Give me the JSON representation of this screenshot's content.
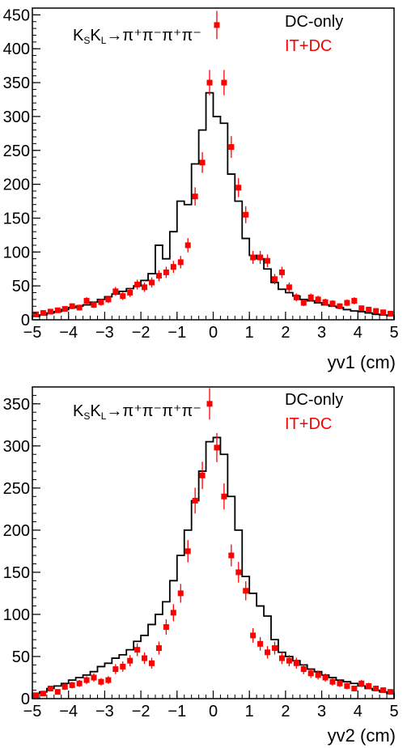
{
  "chart_data": [
    {
      "type": "line",
      "xlabel": "yv1 (cm)",
      "ylabel": "",
      "xlim": [
        -5,
        5
      ],
      "ylim": [
        0,
        460
      ],
      "x_ticks": [
        "−5",
        "−4",
        "−3",
        "−2",
        "−1",
        "0",
        "1",
        "2",
        "3",
        "4",
        "5"
      ],
      "y_ticks": [
        "0",
        "50",
        "100",
        "150",
        "200",
        "250",
        "300",
        "350",
        "400",
        "450"
      ],
      "annotation": {
        "k1": "K",
        "s1": "S",
        "k2": "K",
        "s2": "L",
        "rest": "→π⁺π⁻π⁺π⁻"
      },
      "legend": [
        "DC-only",
        "IT+DC"
      ],
      "colors": {
        "DC-only": "#000000",
        "IT+DC": "#ff0000"
      },
      "series": [
        {
          "name": "DC-only",
          "style": "histogram",
          "bin_edges": [
            -5,
            -4.8,
            -4.6,
            -4.4,
            -4.2,
            -4,
            -3.8,
            -3.6,
            -3.4,
            -3.2,
            -3,
            -2.8,
            -2.6,
            -2.4,
            -2.2,
            -2,
            -1.8,
            -1.6,
            -1.4,
            -1.2,
            -1,
            -0.8,
            -0.6,
            -0.4,
            -0.2,
            0,
            0.2,
            0.4,
            0.6,
            0.8,
            1,
            1.2,
            1.4,
            1.6,
            1.8,
            2,
            2.2,
            2.4,
            2.6,
            2.8,
            3,
            3.2,
            3.4,
            3.6,
            3.8,
            4,
            4.2,
            4.4,
            4.6,
            4.8,
            5
          ],
          "values": [
            5,
            7,
            10,
            12,
            15,
            18,
            20,
            22,
            26,
            30,
            34,
            38,
            42,
            46,
            50,
            58,
            68,
            110,
            90,
            130,
            175,
            170,
            230,
            280,
            335,
            300,
            290,
            215,
            175,
            120,
            95,
            90,
            75,
            55,
            45,
            40,
            35,
            30,
            28,
            25,
            22,
            20,
            18,
            15,
            13,
            12,
            10,
            8,
            7,
            6
          ]
        },
        {
          "name": "IT+DC",
          "style": "points",
          "x": [
            -4.9,
            -4.7,
            -4.5,
            -4.3,
            -4.1,
            -3.9,
            -3.7,
            -3.5,
            -3.3,
            -3.1,
            -2.9,
            -2.7,
            -2.5,
            -2.3,
            -2.1,
            -1.9,
            -1.7,
            -1.5,
            -1.3,
            -1.1,
            -0.9,
            -0.7,
            -0.5,
            -0.3,
            -0.1,
            0.1,
            0.3,
            0.5,
            0.7,
            0.9,
            1.1,
            1.3,
            1.5,
            1.7,
            1.9,
            2.1,
            2.3,
            2.5,
            2.7,
            2.9,
            3.1,
            3.3,
            3.5,
            3.7,
            3.9,
            4.1,
            4.3,
            4.5,
            4.7,
            4.9
          ],
          "y": [
            8,
            10,
            12,
            14,
            16,
            20,
            18,
            28,
            22,
            26,
            30,
            42,
            35,
            40,
            52,
            48,
            55,
            65,
            70,
            78,
            85,
            110,
            182,
            232,
            350,
            435,
            350,
            255,
            195,
            155,
            92,
            92,
            87,
            60,
            70,
            48,
            33,
            25,
            33,
            30,
            26,
            24,
            20,
            25,
            28,
            17,
            15,
            13,
            11,
            9
          ]
        }
      ]
    },
    {
      "type": "line",
      "xlabel": "yv2 (cm)",
      "ylabel": "",
      "xlim": [
        -5,
        5
      ],
      "ylim": [
        0,
        370
      ],
      "x_ticks": [
        "−5",
        "−4",
        "−3",
        "−2",
        "−1",
        "0",
        "1",
        "2",
        "3",
        "4",
        "5"
      ],
      "y_ticks": [
        "0",
        "50",
        "100",
        "150",
        "200",
        "250",
        "300",
        "350"
      ],
      "annotation": {
        "k1": "K",
        "s1": "S",
        "k2": "K",
        "s2": "L",
        "rest": "→π⁺π⁻π⁺π⁻"
      },
      "legend": [
        "DC-only",
        "IT+DC"
      ],
      "colors": {
        "DC-only": "#000000",
        "IT+DC": "#ff0000"
      },
      "series": [
        {
          "name": "DC-only",
          "style": "histogram",
          "bin_edges": [
            -5,
            -4.8,
            -4.6,
            -4.4,
            -4.2,
            -4,
            -3.8,
            -3.6,
            -3.4,
            -3.2,
            -3,
            -2.8,
            -2.6,
            -2.4,
            -2.2,
            -2,
            -1.8,
            -1.6,
            -1.4,
            -1.2,
            -1,
            -0.8,
            -0.6,
            -0.4,
            -0.2,
            0,
            0.2,
            0.4,
            0.6,
            0.8,
            1,
            1.2,
            1.4,
            1.6,
            1.8,
            2,
            2.2,
            2.4,
            2.6,
            2.8,
            3,
            3.2,
            3.4,
            3.6,
            3.8,
            4,
            4.2,
            4.4,
            4.6,
            4.8,
            5
          ],
          "values": [
            6,
            8,
            12,
            15,
            18,
            22,
            25,
            28,
            32,
            38,
            42,
            48,
            52,
            58,
            68,
            75,
            88,
            100,
            115,
            140,
            170,
            200,
            235,
            270,
            305,
            310,
            290,
            240,
            200,
            145,
            125,
            110,
            98,
            70,
            55,
            50,
            45,
            40,
            35,
            32,
            28,
            25,
            22,
            20,
            18,
            15,
            12,
            10,
            8,
            6
          ]
        },
        {
          "name": "IT+DC",
          "style": "points",
          "x": [
            -4.9,
            -4.7,
            -4.5,
            -4.3,
            -4.1,
            -3.9,
            -3.7,
            -3.5,
            -3.3,
            -3.1,
            -2.9,
            -2.7,
            -2.5,
            -2.3,
            -2.1,
            -1.9,
            -1.7,
            -1.5,
            -1.3,
            -1.1,
            -0.9,
            -0.7,
            -0.5,
            -0.3,
            -0.1,
            0.1,
            0.3,
            0.5,
            0.7,
            0.9,
            1.1,
            1.3,
            1.5,
            1.7,
            1.9,
            2.1,
            2.3,
            2.5,
            2.7,
            2.9,
            3.1,
            3.3,
            3.5,
            3.7,
            3.9,
            4.1,
            4.3,
            4.5,
            4.7,
            4.9
          ],
          "y": [
            4,
            6,
            12,
            8,
            14,
            16,
            18,
            22,
            25,
            20,
            22,
            35,
            38,
            45,
            58,
            48,
            42,
            60,
            85,
            102,
            125,
            175,
            235,
            265,
            350,
            298,
            240,
            170,
            150,
            128,
            75,
            65,
            55,
            60,
            48,
            45,
            42,
            35,
            30,
            28,
            25,
            20,
            18,
            15,
            12,
            18,
            15,
            12,
            10,
            8
          ]
        }
      ]
    }
  ]
}
